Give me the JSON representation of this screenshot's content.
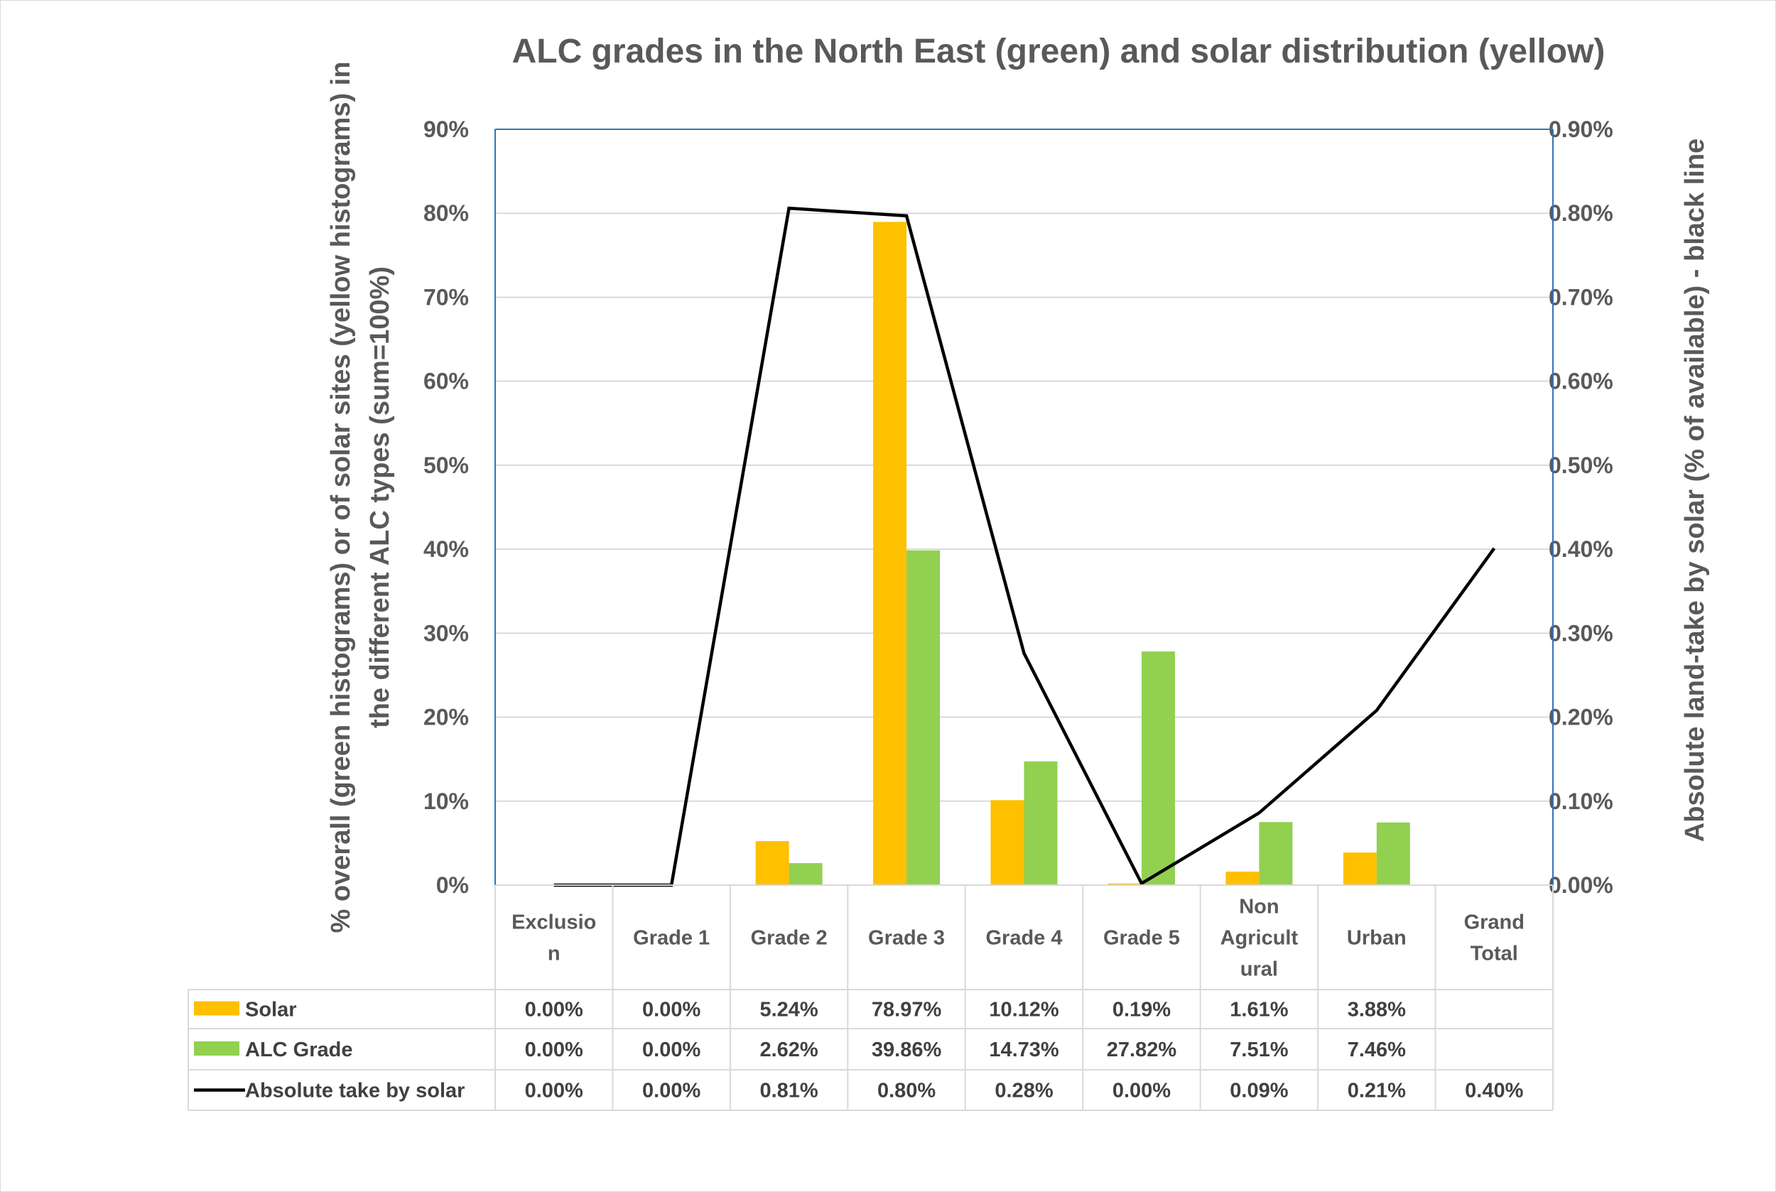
{
  "chart_data": {
    "type": "bar",
    "title": "ALC grades in the North East (green) and solar distribution (yellow)",
    "ylabel_left_line1": "% overall (green histograms) or of solar sites (yellow histograms) in",
    "ylabel_left_line2": "the different ALC types (sum=100%)",
    "ylabel_right": "Absolute land-take by solar (% of available) - black line",
    "categories": [
      [
        "Exclusio",
        "n"
      ],
      [
        "Grade 1"
      ],
      [
        "Grade 2"
      ],
      [
        "Grade 3"
      ],
      [
        "Grade 4"
      ],
      [
        "Grade 5"
      ],
      [
        "Non",
        "Agricult",
        "ural"
      ],
      [
        "Urban"
      ],
      [
        "Grand",
        "Total"
      ]
    ],
    "ylim_left": [
      0,
      90
    ],
    "ylim_right": [
      0,
      0.9
    ],
    "yticks_left": [
      "0%",
      "10%",
      "20%",
      "30%",
      "40%",
      "50%",
      "60%",
      "70%",
      "80%",
      "90%"
    ],
    "yticks_right": [
      "0.00%",
      "0.10%",
      "0.20%",
      "0.30%",
      "0.40%",
      "0.50%",
      "0.60%",
      "0.70%",
      "0.80%",
      "0.90%"
    ],
    "series": [
      {
        "name": "Solar",
        "kind": "bar",
        "color": "#FFC000",
        "values": [
          0,
          0,
          5.24,
          78.97,
          10.12,
          0.19,
          1.61,
          3.88,
          null
        ],
        "labels": [
          "0.00%",
          "0.00%",
          "5.24%",
          "78.97%",
          "10.12%",
          "0.19%",
          "1.61%",
          "3.88%",
          ""
        ]
      },
      {
        "name": "ALC Grade",
        "kind": "bar",
        "color": "#92D050",
        "values": [
          0,
          0,
          2.62,
          39.86,
          14.73,
          27.82,
          7.51,
          7.46,
          null
        ],
        "labels": [
          "0.00%",
          "0.00%",
          "2.62%",
          "39.86%",
          "14.73%",
          "27.82%",
          "7.51%",
          "7.46%",
          ""
        ]
      },
      {
        "name": "Absolute take by solar",
        "kind": "line",
        "axis": "right",
        "color": "#000000",
        "values": [
          0,
          0,
          0.806,
          0.797,
          0.276,
          0.002,
          0.086,
          0.208,
          0.401
        ],
        "labels": [
          "0.00%",
          "0.00%",
          "0.81%",
          "0.80%",
          "0.28%",
          "0.00%",
          "0.09%",
          "0.21%",
          "0.40%"
        ]
      }
    ]
  }
}
